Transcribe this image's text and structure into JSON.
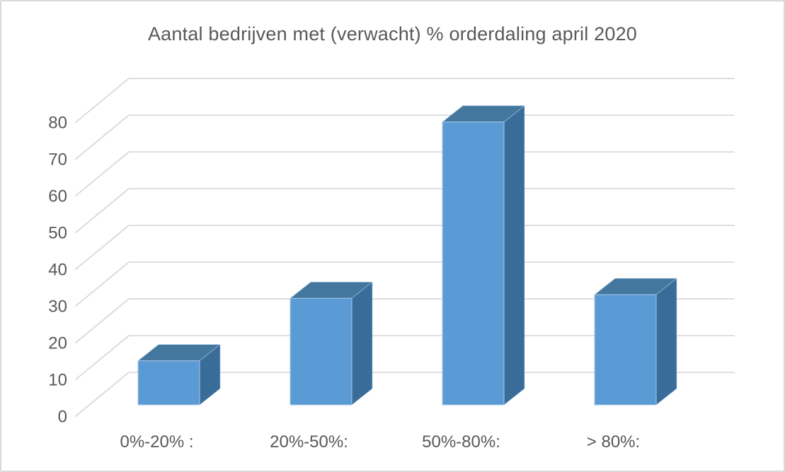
{
  "window": {
    "background": "#ffffff",
    "border_color": "#d9d9d9"
  },
  "chart_data": {
    "type": "bar",
    "variant": "3d-column",
    "title": "Aantal bedrijven met (verwacht) % orderdaling april 2020",
    "categories": [
      "0%-20% :",
      "20%-50%:",
      "50%-80%:",
      "> 80%:"
    ],
    "values": [
      12,
      29,
      77,
      30
    ],
    "series": [
      {
        "name": "Aantal bedrijven",
        "values": [
          12,
          29,
          77,
          30
        ]
      }
    ],
    "xlabel": "",
    "ylabel": "",
    "ylim": [
      0,
      80
    ],
    "ytick_interval": 10,
    "yticks": [
      0,
      10,
      20,
      30,
      40,
      50,
      60,
      70,
      80
    ],
    "grid": true,
    "legend": "none",
    "colors": {
      "bar_front": "#5B9BD5",
      "bar_top": "#44779E",
      "bar_side": "#3A6C99",
      "bar_edge": "#A9C7E7",
      "gridline": "#D9D9D9",
      "text": "#595959"
    }
  }
}
